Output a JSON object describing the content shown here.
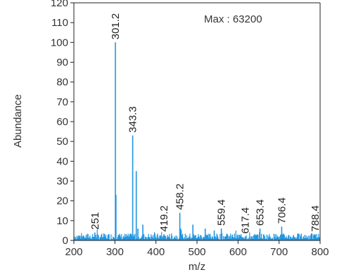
{
  "chart_data": {
    "type": "bar",
    "annotation": "Max : 63200",
    "xlabel": "m/z",
    "ylabel": "Abundance",
    "xlim": [
      200,
      800
    ],
    "ylim": [
      0,
      120
    ],
    "x_ticks": [
      200,
      300,
      400,
      500,
      600,
      700,
      800
    ],
    "y_ticks": [
      0,
      10,
      20,
      30,
      40,
      50,
      60,
      70,
      80,
      90,
      100,
      110,
      120
    ],
    "grid": false,
    "series_color": "#2196e0",
    "labeled_peaks": [
      {
        "label": "251",
        "x": 251,
        "y": 4
      },
      {
        "label": "301.2",
        "x": 301.2,
        "y": 100
      },
      {
        "label": "343.3",
        "x": 343.3,
        "y": 53
      },
      {
        "label": "419.2",
        "x": 419.2,
        "y": 3
      },
      {
        "label": "458.2",
        "x": 458.2,
        "y": 14
      },
      {
        "label": "559.4",
        "x": 559.4,
        "y": 6
      },
      {
        "label": "617.4",
        "x": 617.4,
        "y": 2
      },
      {
        "label": "653.4",
        "x": 653.4,
        "y": 6
      },
      {
        "label": "706.4",
        "x": 706.4,
        "y": 7
      },
      {
        "label": "788.4",
        "x": 788.4,
        "y": 3
      }
    ],
    "peaks": [
      {
        "x": 302.5,
        "y": 23
      },
      {
        "x": 352,
        "y": 35
      },
      {
        "x": 356,
        "y": 6
      },
      {
        "x": 368,
        "y": 8
      },
      {
        "x": 460,
        "y": 6
      },
      {
        "x": 490,
        "y": 8
      },
      {
        "x": 520,
        "y": 6
      },
      {
        "x": 542,
        "y": 5
      }
    ]
  }
}
